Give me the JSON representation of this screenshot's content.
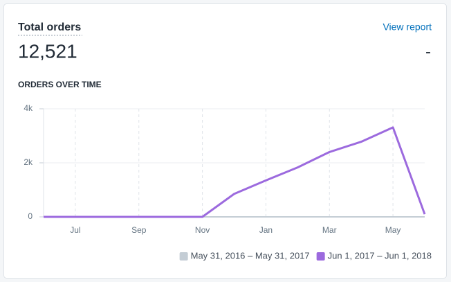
{
  "header": {
    "title": "Total orders",
    "link": "View report",
    "total": "12,521",
    "comparison": "-"
  },
  "chart_data": {
    "type": "line",
    "subtitle": "ORDERS OVER TIME",
    "categories": [
      null,
      "Jul",
      null,
      "Sep",
      null,
      "Nov",
      null,
      "Jan",
      null,
      "Mar",
      null,
      "May",
      null
    ],
    "series": [
      {
        "name": "May 31, 2016 – May 31, 2017",
        "color": "#c4cdd5",
        "values": [
          0,
          0,
          0,
          0,
          0,
          0,
          0,
          0,
          0,
          0,
          0,
          0,
          0
        ]
      },
      {
        "name": "Jun 1, 2017 – Jun 1, 2018",
        "color": "#9c6ade",
        "values": [
          0,
          0,
          0,
          0,
          0,
          0,
          850,
          1350,
          1830,
          2400,
          2780,
          3310,
          100
        ]
      }
    ],
    "ylim": [
      0,
      4000
    ],
    "yticks": [
      0,
      {
        "value": 2000,
        "label": "2k"
      },
      {
        "value": 4000,
        "label": "4k"
      }
    ],
    "grid": true,
    "legend": "bottom-right"
  }
}
